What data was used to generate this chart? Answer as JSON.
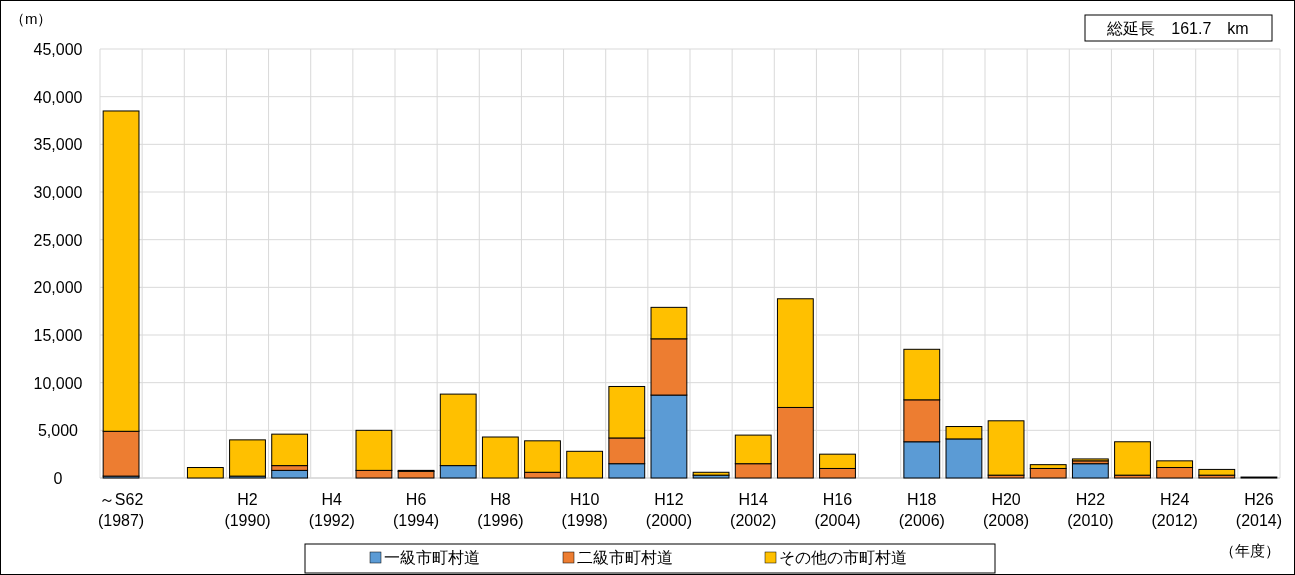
{
  "chart_data": {
    "type": "bar",
    "stacked": true,
    "ylabel": "（m）",
    "xlabel": "（年度）",
    "annotations": [
      "総延長　161.7　km"
    ],
    "categories": [
      "～S62\n(1987)",
      null,
      null,
      "H2\n(1990)",
      null,
      "H4\n(1992)",
      null,
      "H6\n(1994)",
      null,
      "H8\n(1996)",
      null,
      "H10\n(1998)",
      null,
      "H12\n(2000)",
      null,
      "H14\n(2002)",
      null,
      "H16\n(2004)",
      null,
      "H18\n(2006)",
      null,
      "H20\n(2008)",
      null,
      "H22\n(2010)",
      null,
      "H24\n(2012)",
      null,
      "H26\n(2014)"
    ],
    "series": [
      {
        "name": "一級市町村道",
        "color": "#5b9bd5",
        "values": [
          200,
          0,
          0,
          200,
          800,
          0,
          0,
          0,
          1300,
          0,
          0,
          0,
          1500,
          8700,
          300,
          0,
          0,
          0,
          0,
          3800,
          4100,
          0,
          0,
          1500,
          0,
          0,
          0,
          0
        ]
      },
      {
        "name": "二級市町村道",
        "color": "#ed7d31",
        "values": [
          4700,
          0,
          0,
          0,
          500,
          0,
          800,
          700,
          0,
          0,
          600,
          0,
          2700,
          5900,
          0,
          1500,
          7400,
          1000,
          0,
          4400,
          0,
          300,
          1000,
          300,
          300,
          1100,
          300,
          0
        ]
      },
      {
        "name": "その他の市町村道",
        "color": "#ffc000",
        "values": [
          33600,
          0,
          1100,
          3800,
          3300,
          0,
          4200,
          100,
          7500,
          4300,
          3300,
          2800,
          5400,
          3300,
          300,
          3000,
          11400,
          1500,
          0,
          5300,
          1300,
          5700,
          400,
          200,
          3500,
          700,
          600,
          100
        ]
      }
    ],
    "ylim": [
      0,
      45000
    ],
    "yticks": [
      {
        "value": 0,
        "label": "0"
      },
      {
        "value": 5000,
        "label": "5,000"
      },
      {
        "value": 10000,
        "label": "10,000"
      },
      {
        "value": 15000,
        "label": "15,000"
      },
      {
        "value": 20000,
        "label": "20,000"
      },
      {
        "value": 25000,
        "label": "25,000"
      },
      {
        "value": 30000,
        "label": "30,000"
      },
      {
        "value": 35000,
        "label": "35,000"
      },
      {
        "value": 40000,
        "label": "40,000"
      },
      {
        "value": 45000,
        "label": "45,000"
      }
    ],
    "grid": true,
    "legend": "bottom"
  }
}
